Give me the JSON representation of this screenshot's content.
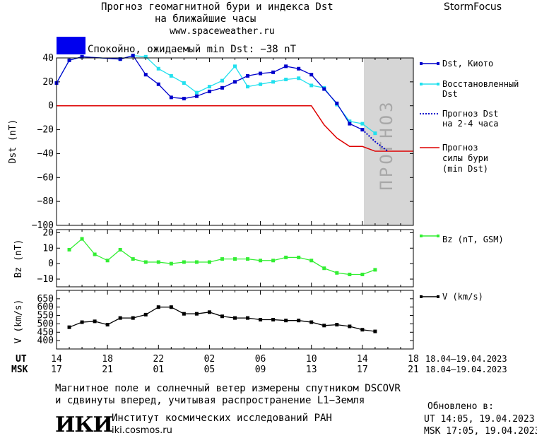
{
  "header": {
    "title_line1": "Прогноз геомагнитной бури и индекса Dst",
    "title_line2": "на ближайшие часы",
    "site": "www.spaceweather.ru",
    "brand": "StormFocus",
    "status_text": "Спокойно, ожидаемый min Dst: −38 nT",
    "status_color": "#0000ee"
  },
  "panels": {
    "dst": {
      "ylabel": "Dst (nT)",
      "ylim": [
        -100,
        40
      ],
      "yticks": [
        40,
        20,
        0,
        -20,
        -40,
        -60,
        -80,
        -100
      ],
      "forecast_zone_label": "ПРОГНОЗ"
    },
    "bz": {
      "ylabel": "Bz (nT)",
      "ylim": [
        -15,
        22
      ],
      "yticks": [
        20,
        10,
        0,
        -10
      ]
    },
    "v": {
      "ylabel": "V (km/s)",
      "ylim": [
        350,
        700
      ],
      "yticks": [
        650,
        600,
        550,
        500,
        450,
        400
      ]
    }
  },
  "legend": {
    "dst_kyoto": "Dst, Киото",
    "dst_restored_line1": "Восстановленный",
    "dst_restored_line2": "Dst",
    "dst_forecast_line1": "Прогноз Dst",
    "dst_forecast_line2": "на 2-4 часа",
    "storm_forecast_line1": "Прогноз",
    "storm_forecast_line2": "силы бури",
    "storm_forecast_line3": "(min Dst)",
    "bz": "Bz (nT, GSM)",
    "v": "V (km/s)"
  },
  "colors": {
    "dst_kyoto": "#0000cc",
    "dst_restored": "#22e0ee",
    "dst_forecast": "#0000cc",
    "storm_forecast": "#dd0000",
    "bz": "#33ee33",
    "v": "#000000",
    "forecast_zone": "#d6d6d6"
  },
  "time_axis": {
    "ut_label": "UT",
    "msk_label": "MSK",
    "ut_ticks": [
      "14",
      "18",
      "22",
      "02",
      "06",
      "10",
      "14",
      "18"
    ],
    "msk_ticks": [
      "17",
      "21",
      "01",
      "05",
      "09",
      "13",
      "17",
      "21"
    ],
    "ut_range": "18.04–19.04.2023",
    "msk_range": "18.04–19.04.2023"
  },
  "footer": {
    "note_line1": "Магнитное поле и солнечный ветер измерены спутником DSCOVR",
    "note_line2": "и сдвинуты вперед, учитывая распространение L1−Земля",
    "updated_label": "Обновлено в:",
    "updated_ut": "UT  14:05, 19.04.2023",
    "updated_msk": "MSK 17:05, 19.04.2023",
    "institute": "Институт космических исследований РАН",
    "institute_url": "iki.cosmos.ru",
    "logo_text": "ИКИ"
  },
  "chart_data": [
    {
      "type": "line",
      "name": "dst",
      "x_unit": "hours UT from 14:00 18.04.2023",
      "xlim": [
        0,
        28
      ],
      "ylim": [
        -100,
        40
      ],
      "series": [
        {
          "name": "Dst, Киото",
          "x": [
            0,
            1,
            2,
            5,
            6,
            7,
            8,
            9,
            10,
            11,
            12,
            13,
            14,
            15,
            16,
            17,
            18,
            19,
            20,
            21,
            22,
            23,
            24
          ],
          "values": [
            19,
            38,
            41,
            39,
            42,
            26,
            18,
            7,
            6,
            8,
            12,
            15,
            20,
            25,
            27,
            28,
            33,
            31,
            26,
            14,
            2,
            -15,
            -20
          ]
        },
        {
          "name": "Восстановленный Dst",
          "x": [
            0,
            1,
            2,
            5,
            6,
            7,
            8,
            9,
            10,
            11,
            12,
            13,
            14,
            15,
            16,
            17,
            18,
            19,
            20,
            21,
            22,
            23,
            24,
            25
          ],
          "values": [
            19,
            38,
            41,
            39,
            42,
            41,
            31,
            25,
            19,
            11,
            16,
            21,
            33,
            16,
            18,
            20,
            22,
            23,
            17,
            15,
            1,
            -13,
            -15,
            -23
          ]
        },
        {
          "name": "Прогноз Dst на 2-4 часа",
          "x": [
            24,
            25,
            26
          ],
          "values": [
            -20,
            -30,
            -38
          ]
        },
        {
          "name": "Прогноз силы бури (min Dst)",
          "x": [
            0,
            20,
            21,
            22,
            23,
            24,
            25,
            26,
            28
          ],
          "values": [
            0,
            0,
            -16,
            -27,
            -34,
            -34,
            -38,
            -38,
            -38
          ]
        }
      ]
    },
    {
      "type": "line",
      "name": "bz",
      "x_unit": "hours UT from 14:00 18.04.2023",
      "ylim": [
        -15,
        22
      ],
      "series": [
        {
          "name": "Bz (nT, GSM)",
          "x": [
            1,
            2,
            3,
            4,
            5,
            6,
            7,
            8,
            9,
            10,
            11,
            12,
            13,
            14,
            15,
            16,
            17,
            18,
            19,
            20,
            21,
            22,
            23,
            24,
            25
          ],
          "values": [
            9,
            16,
            6,
            2,
            9,
            3,
            1,
            1,
            0,
            1,
            1,
            1,
            3,
            3,
            3,
            2,
            2,
            4,
            4,
            2,
            -3,
            -6,
            -7,
            -7,
            -4
          ]
        }
      ]
    },
    {
      "type": "line",
      "name": "v",
      "x_unit": "hours UT from 14:00 18.04.2023",
      "ylim": [
        350,
        700
      ],
      "series": [
        {
          "name": "V (km/s)",
          "x": [
            1,
            2,
            3,
            4,
            5,
            6,
            7,
            8,
            9,
            10,
            11,
            12,
            13,
            14,
            15,
            16,
            17,
            18,
            19,
            20,
            21,
            22,
            23,
            24,
            25
          ],
          "values": [
            480,
            510,
            515,
            495,
            535,
            535,
            555,
            600,
            600,
            560,
            560,
            570,
            545,
            535,
            535,
            525,
            525,
            520,
            520,
            510,
            490,
            495,
            485,
            465,
            455
          ]
        }
      ]
    }
  ]
}
